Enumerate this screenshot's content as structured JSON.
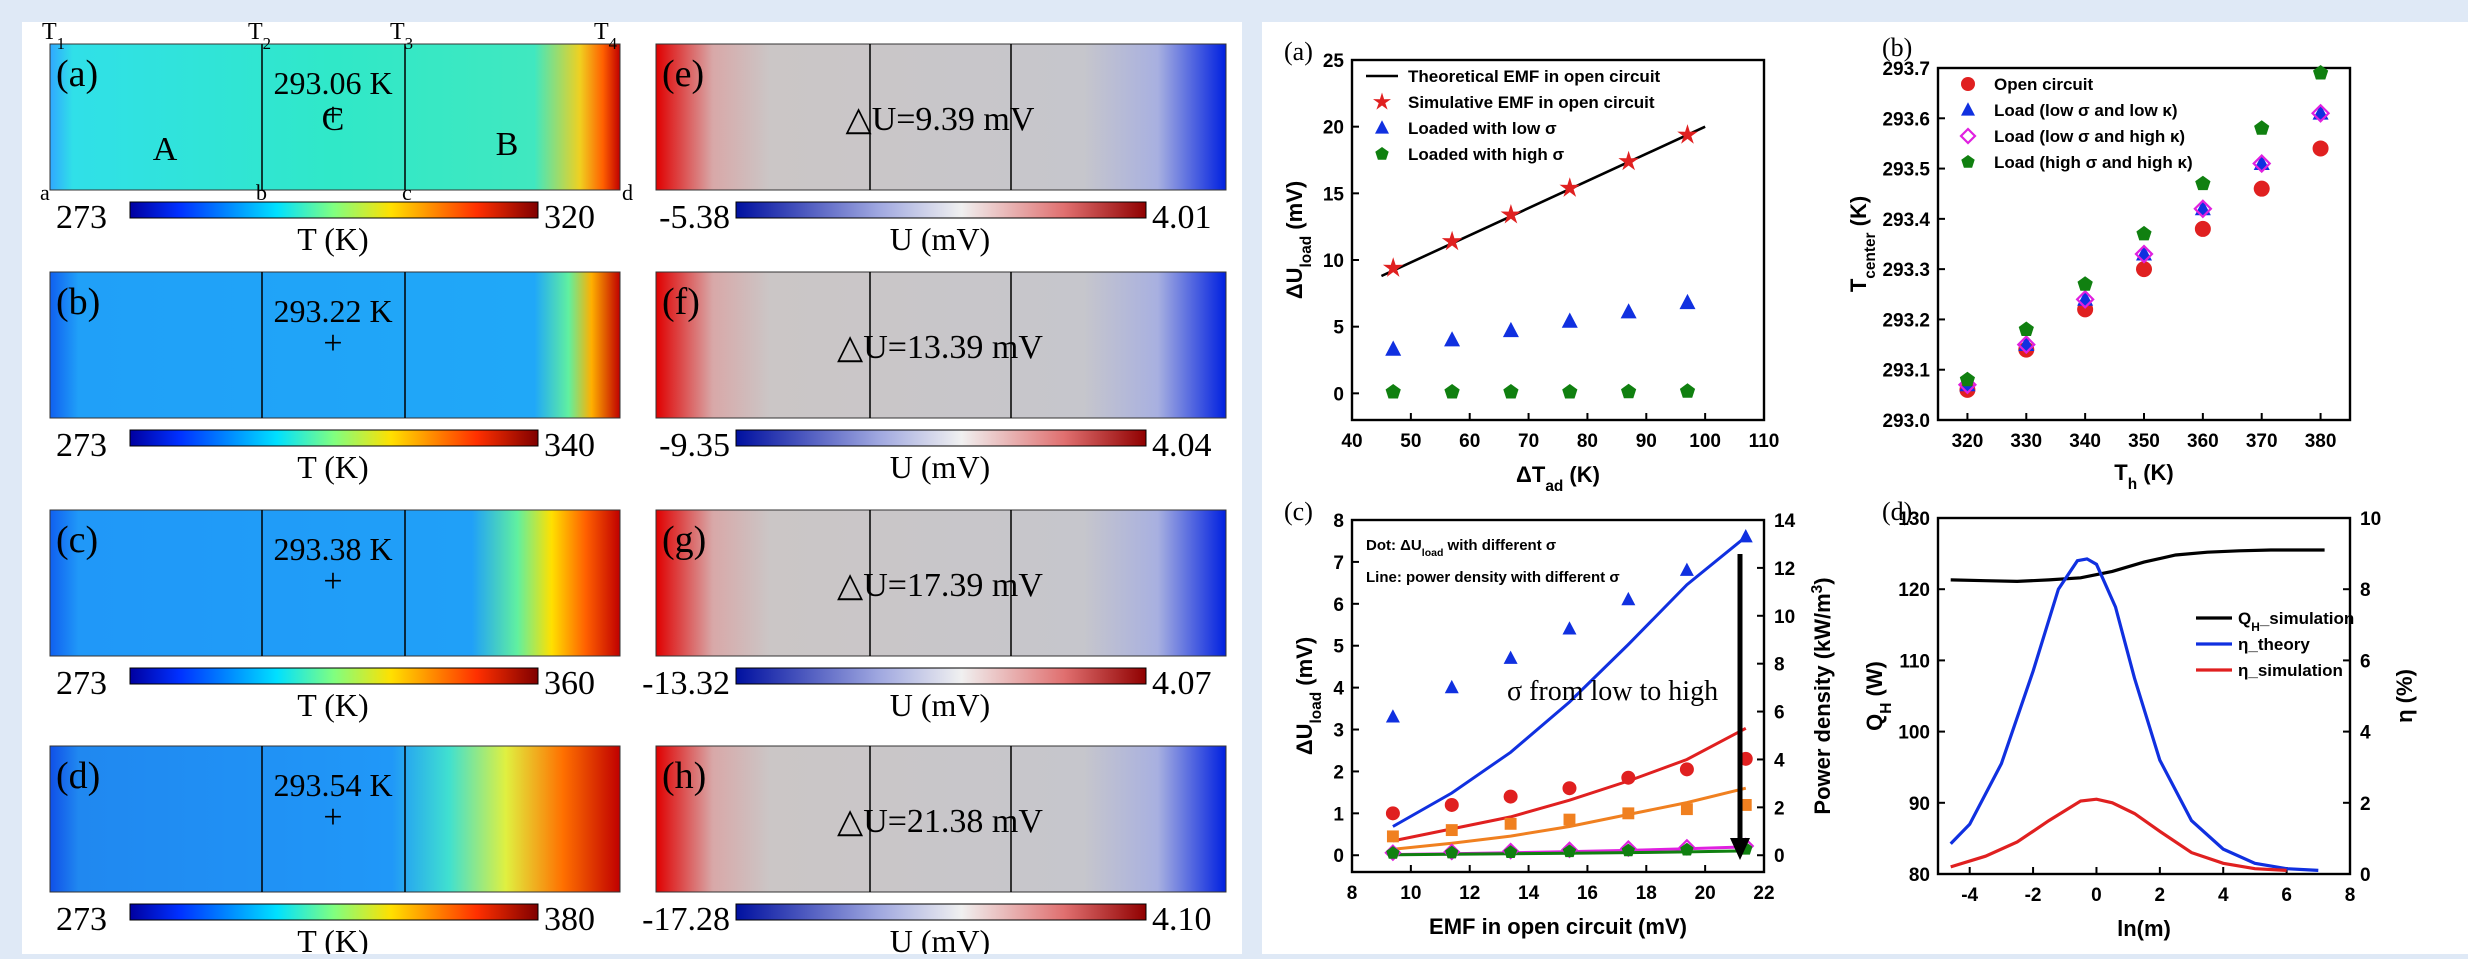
{
  "left_panels": {
    "field_labels": {
      "a": "(a)",
      "b": "(b)",
      "c": "(c)",
      "d": "(d)",
      "e": "(e)",
      "f": "(f)",
      "g": "(g)",
      "h": "(h)"
    },
    "top_labels": [
      "T",
      "T",
      "T",
      "T"
    ],
    "top_subs": [
      "1",
      "2",
      "3",
      "4"
    ],
    "corner_labels": [
      "a",
      "b",
      "c",
      "d"
    ],
    "region_labels": {
      "A": "A",
      "C": "C",
      "B": "B"
    },
    "center_temps": [
      "293.06 K",
      "293.22 K",
      "293.38 K",
      "293.54 K"
    ],
    "delta_u": [
      "△U=9.39 mV",
      "△U=13.39 mV",
      "△U=17.39 mV",
      "△U=21.38 mV"
    ],
    "t_colorbar_min": [
      "273",
      "273",
      "273",
      "273"
    ],
    "t_colorbar_max": [
      "320",
      "340",
      "360",
      "380"
    ],
    "t_colorbar_label": "T (K)",
    "u_colorbar_min": [
      "-5.38",
      "-9.35",
      "-13.32",
      "-17.28"
    ],
    "u_colorbar_max": [
      "4.01",
      "4.04",
      "4.07",
      "4.10"
    ],
    "u_colorbar_label": "U (mV)",
    "colors": {
      "jet_low": "#1010c0",
      "jet_mid": "#30e0c0",
      "jet_high": "#c00000",
      "gray": "#c8c8c8",
      "u_red": "#e00000",
      "u_blue": "#0020e0"
    }
  },
  "chart_data": [
    {
      "panel": "(a)",
      "type": "scatter",
      "xlabel": "ΔT",
      "xlabel_sub": "ad",
      "xlabel_unit": " (K)",
      "ylabel": "ΔU",
      "ylabel_sub": "load",
      "ylabel_unit": " (mV)",
      "xlim": [
        40,
        110
      ],
      "ylim": [
        -2,
        25
      ],
      "xticks": [
        40,
        50,
        60,
        70,
        80,
        90,
        100,
        110
      ],
      "yticks": [
        0,
        5,
        10,
        15,
        20,
        25
      ],
      "legend_position": "top-left",
      "series": [
        {
          "name": "Theoretical EMF in open circuit",
          "kind": "line",
          "color": "#000000",
          "x": [
            45,
            100
          ],
          "y": [
            8.8,
            20.0
          ]
        },
        {
          "name": "Simulative EMF in open circuit",
          "kind": "star",
          "color": "#e02020",
          "x": [
            47,
            57,
            67,
            77,
            87,
            97
          ],
          "y": [
            9.39,
            11.39,
            13.39,
            15.39,
            17.39,
            19.38
          ]
        },
        {
          "name": "Loaded with low σ",
          "kind": "triangle",
          "color": "#1030e0",
          "x": [
            47,
            57,
            67,
            77,
            87,
            97
          ],
          "y": [
            3.3,
            4.0,
            4.7,
            5.4,
            6.1,
            6.8
          ]
        },
        {
          "name": "Loaded with high σ",
          "kind": "pentagon",
          "color": "#108010",
          "x": [
            47,
            57,
            67,
            77,
            87,
            97
          ],
          "y": [
            0.1,
            0.1,
            0.1,
            0.1,
            0.12,
            0.15
          ]
        }
      ]
    },
    {
      "panel": "(b)",
      "type": "scatter",
      "xlabel": "T",
      "xlabel_sub": "h",
      "xlabel_unit": " (K)",
      "ylabel": "T",
      "ylabel_sub": "center",
      "ylabel_unit": " (K)",
      "xlim": [
        315,
        385
      ],
      "ylim": [
        293.0,
        293.7
      ],
      "xticks": [
        320,
        330,
        340,
        350,
        360,
        370,
        380
      ],
      "yticks": [
        293.0,
        293.1,
        293.2,
        293.3,
        293.4,
        293.5,
        293.6,
        293.7
      ],
      "legend_position": "top-left",
      "series": [
        {
          "name": "Open circuit",
          "kind": "circle",
          "color": "#e02020",
          "x": [
            320,
            330,
            340,
            350,
            360,
            370,
            380
          ],
          "y": [
            293.06,
            293.14,
            293.22,
            293.3,
            293.38,
            293.46,
            293.54
          ]
        },
        {
          "name": "Load (low σ and low κ)",
          "kind": "triangle",
          "color": "#1030e0",
          "x": [
            320,
            330,
            340,
            350,
            360,
            370,
            380
          ],
          "y": [
            293.07,
            293.15,
            293.24,
            293.33,
            293.42,
            293.51,
            293.61
          ]
        },
        {
          "name": "Load (low σ and high κ)",
          "kind": "diamond",
          "color": "#e020e0",
          "x": [
            320,
            330,
            340,
            350,
            360,
            370,
            380
          ],
          "y": [
            293.07,
            293.15,
            293.24,
            293.33,
            293.42,
            293.51,
            293.61
          ]
        },
        {
          "name": "Load (high σ and high κ)",
          "kind": "pentagon",
          "color": "#108010",
          "x": [
            320,
            330,
            340,
            350,
            360,
            370,
            380
          ],
          "y": [
            293.08,
            293.18,
            293.27,
            293.37,
            293.47,
            293.58,
            293.69
          ]
        }
      ]
    },
    {
      "panel": "(c)",
      "type": "scatter",
      "xlabel": "EMF in open circuit (mV)",
      "ylabel": "ΔU",
      "ylabel_sub": "load",
      "ylabel_unit": " (mV)",
      "y2label": "Power density (kW/m",
      "y2label_sup": "3",
      "y2label_end": ")",
      "xlim": [
        8,
        22
      ],
      "ylim": [
        -0.4,
        8
      ],
      "y2lim": [
        -0.7,
        14
      ],
      "xticks": [
        8,
        10,
        12,
        14,
        16,
        18,
        20,
        22
      ],
      "yticks": [
        0,
        1,
        2,
        3,
        4,
        5,
        6,
        7,
        8
      ],
      "y2ticks": [
        0,
        2,
        4,
        6,
        8,
        10,
        12,
        14
      ],
      "note1": "Dot: ΔU",
      "note1_sub": "load",
      "note1_end": " with different σ",
      "note2": "Line: power density with different σ",
      "arrow_label": "σ from low to high",
      "dots": [
        {
          "kind": "triangle",
          "color": "#1030e0",
          "x": [
            9.39,
            11.39,
            13.39,
            15.39,
            17.39,
            19.38,
            21.38
          ],
          "y": [
            3.3,
            4.0,
            4.7,
            5.4,
            6.1,
            6.8,
            7.6
          ]
        },
        {
          "kind": "circle",
          "color": "#e02020",
          "x": [
            9.39,
            11.39,
            13.39,
            15.39,
            17.39,
            19.38,
            21.38
          ],
          "y": [
            1.0,
            1.2,
            1.4,
            1.6,
            1.85,
            2.05,
            2.3
          ]
        },
        {
          "kind": "square",
          "color": "#f08020",
          "x": [
            9.39,
            11.39,
            13.39,
            15.39,
            17.39,
            19.38,
            21.38
          ],
          "y": [
            0.45,
            0.6,
            0.75,
            0.85,
            1.0,
            1.1,
            1.2
          ]
        },
        {
          "kind": "diamond",
          "color": "#e020e0",
          "x": [
            9.39,
            11.39,
            13.39,
            15.39,
            17.39,
            19.38,
            21.38
          ],
          "y": [
            0.06,
            0.08,
            0.1,
            0.13,
            0.16,
            0.19,
            0.22
          ]
        },
        {
          "kind": "pentagon",
          "color": "#108010",
          "x": [
            9.39,
            11.39,
            13.39,
            15.39,
            17.39,
            19.38,
            21.38
          ],
          "y": [
            0.05,
            0.06,
            0.07,
            0.09,
            0.11,
            0.13,
            0.15
          ]
        }
      ],
      "lines": [
        {
          "color": "#1030e0",
          "x": [
            9.39,
            11.39,
            13.39,
            15.39,
            17.39,
            19.38,
            21.38
          ],
          "y2": [
            1.2,
            2.6,
            4.3,
            6.4,
            8.8,
            11.3,
            13.3
          ]
        },
        {
          "color": "#e02020",
          "x": [
            9.39,
            11.39,
            13.39,
            15.39,
            17.39,
            19.38,
            21.38
          ],
          "y2": [
            0.6,
            1.1,
            1.6,
            2.3,
            3.1,
            4.0,
            5.3
          ]
        },
        {
          "color": "#f08020",
          "x": [
            9.39,
            11.39,
            13.39,
            15.39,
            17.39,
            19.38,
            21.38
          ],
          "y2": [
            0.25,
            0.5,
            0.8,
            1.2,
            1.7,
            2.2,
            2.8
          ]
        },
        {
          "color": "#e020e0",
          "x": [
            9.39,
            11.39,
            13.39,
            15.39,
            17.39,
            19.38,
            21.38
          ],
          "y2": [
            0.03,
            0.06,
            0.1,
            0.15,
            0.2,
            0.27,
            0.35
          ]
        },
        {
          "color": "#108010",
          "x": [
            9.39,
            11.39,
            13.39,
            15.39,
            17.39,
            19.38,
            21.38
          ],
          "y2": [
            0.02,
            0.04,
            0.06,
            0.08,
            0.11,
            0.14,
            0.18
          ]
        }
      ]
    },
    {
      "panel": "(d)",
      "type": "line",
      "xlabel": "ln(m)",
      "ylabel": "Q",
      "ylabel_sub": "H",
      "ylabel_unit": " (W)",
      "y2label": "η (%)",
      "xlim": [
        -5,
        8
      ],
      "ylim": [
        80,
        130
      ],
      "y2lim": [
        0,
        10
      ],
      "xticks": [
        -4,
        -2,
        0,
        2,
        4,
        6,
        8
      ],
      "yticks": [
        80,
        90,
        100,
        110,
        120,
        130
      ],
      "y2ticks": [
        0,
        2,
        4,
        6,
        8,
        10
      ],
      "legend_position": "center-right",
      "series": [
        {
          "name": "Q",
          "name_sub": "H",
          "name_end": "_simulation",
          "axis": "left",
          "color": "#000000",
          "x": [
            -4.6,
            -3.5,
            -2.5,
            -1.5,
            -0.5,
            0.5,
            1.5,
            2.5,
            3.5,
            4.5,
            5.5,
            6.5,
            7.2
          ],
          "y": [
            121.3,
            121.2,
            121.1,
            121.3,
            121.6,
            122.5,
            123.8,
            124.8,
            125.2,
            125.4,
            125.5,
            125.5,
            125.5
          ]
        },
        {
          "name": "η_theory",
          "axis": "right",
          "color": "#1030e0",
          "x": [
            -4.6,
            -4.0,
            -3.0,
            -2.0,
            -1.2,
            -0.6,
            -0.3,
            0.0,
            0.6,
            1.2,
            2.0,
            3.0,
            4.0,
            5.0,
            6.0,
            7.0
          ],
          "y": [
            0.85,
            1.4,
            3.1,
            5.7,
            8.0,
            8.8,
            8.85,
            8.7,
            7.5,
            5.5,
            3.2,
            1.5,
            0.7,
            0.3,
            0.15,
            0.1
          ]
        },
        {
          "name": "η_simulation",
          "axis": "right",
          "color": "#e02020",
          "x": [
            -4.6,
            -3.5,
            -2.5,
            -1.5,
            -0.5,
            0.0,
            0.5,
            1.2,
            2.0,
            3.0,
            4.0,
            5.0,
            6.0
          ],
          "y": [
            0.2,
            0.5,
            0.9,
            1.5,
            2.05,
            2.1,
            2.0,
            1.7,
            1.2,
            0.6,
            0.3,
            0.15,
            0.1
          ]
        }
      ]
    }
  ]
}
